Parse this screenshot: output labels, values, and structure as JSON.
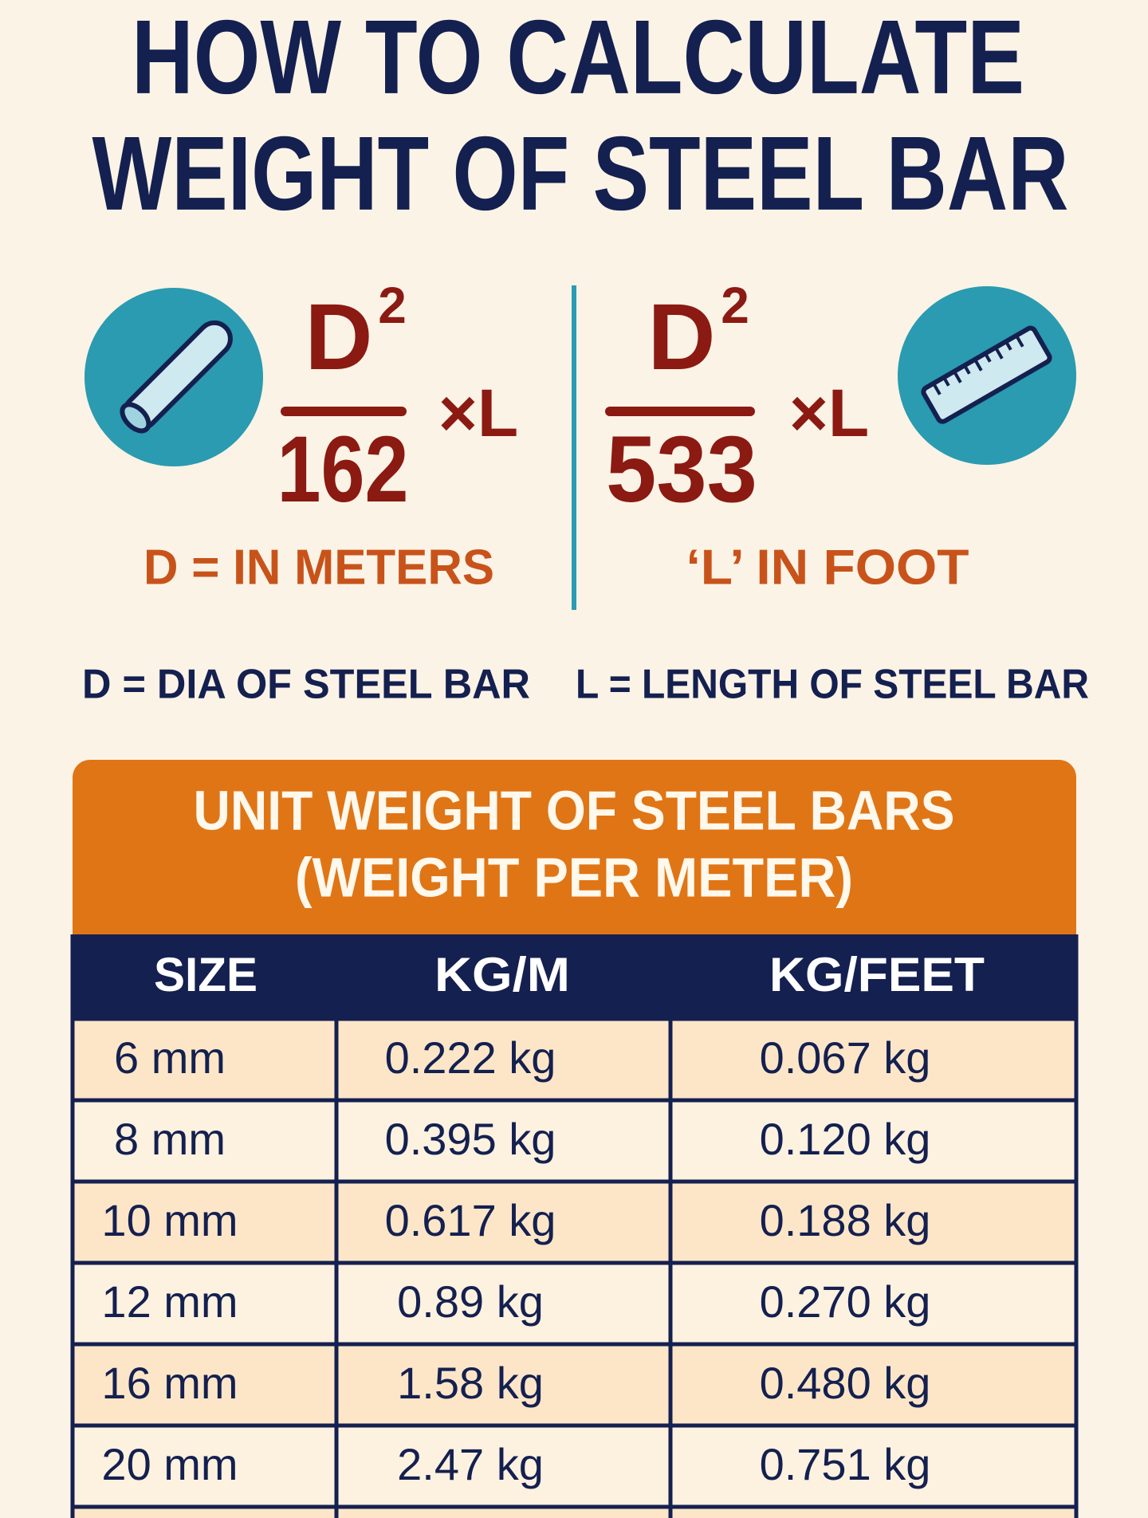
{
  "header": {
    "title_lines": [
      "HOW TO CALCULATE",
      "WEIGHT OF STEEL BAR"
    ]
  },
  "formulas": [
    {
      "numerator": "D",
      "exponent": "2",
      "denominator": "162",
      "multiplier": "×L",
      "note": "D = IN METERS"
    },
    {
      "numerator": "D",
      "exponent": "2",
      "denominator": "533",
      "multiplier": "×L",
      "note": "‘L’ IN FOOT"
    }
  ],
  "legend": [
    "D = DIA OF STEEL BAR",
    "L = LENGTH OF STEEL BAR"
  ],
  "table": {
    "title_lines": [
      "UNIT WEIGHT OF STEEL BARS",
      "(WEIGHT PER METER)"
    ],
    "columns": [
      "SIZE",
      "KG/M",
      "KG/FEET"
    ],
    "rows": [
      [
        "6 mm",
        "0.222 kg",
        "0.067 kg"
      ],
      [
        "8 mm",
        "0.395 kg",
        "0.120 kg"
      ],
      [
        "10 mm",
        "0.617 kg",
        "0.188 kg"
      ],
      [
        "12 mm",
        "0.89 kg",
        "0.270 kg"
      ],
      [
        "16 mm",
        "1.58 kg",
        "0.480 kg"
      ],
      [
        "20 mm",
        "2.47 kg",
        "0.751 kg"
      ]
    ]
  }
}
